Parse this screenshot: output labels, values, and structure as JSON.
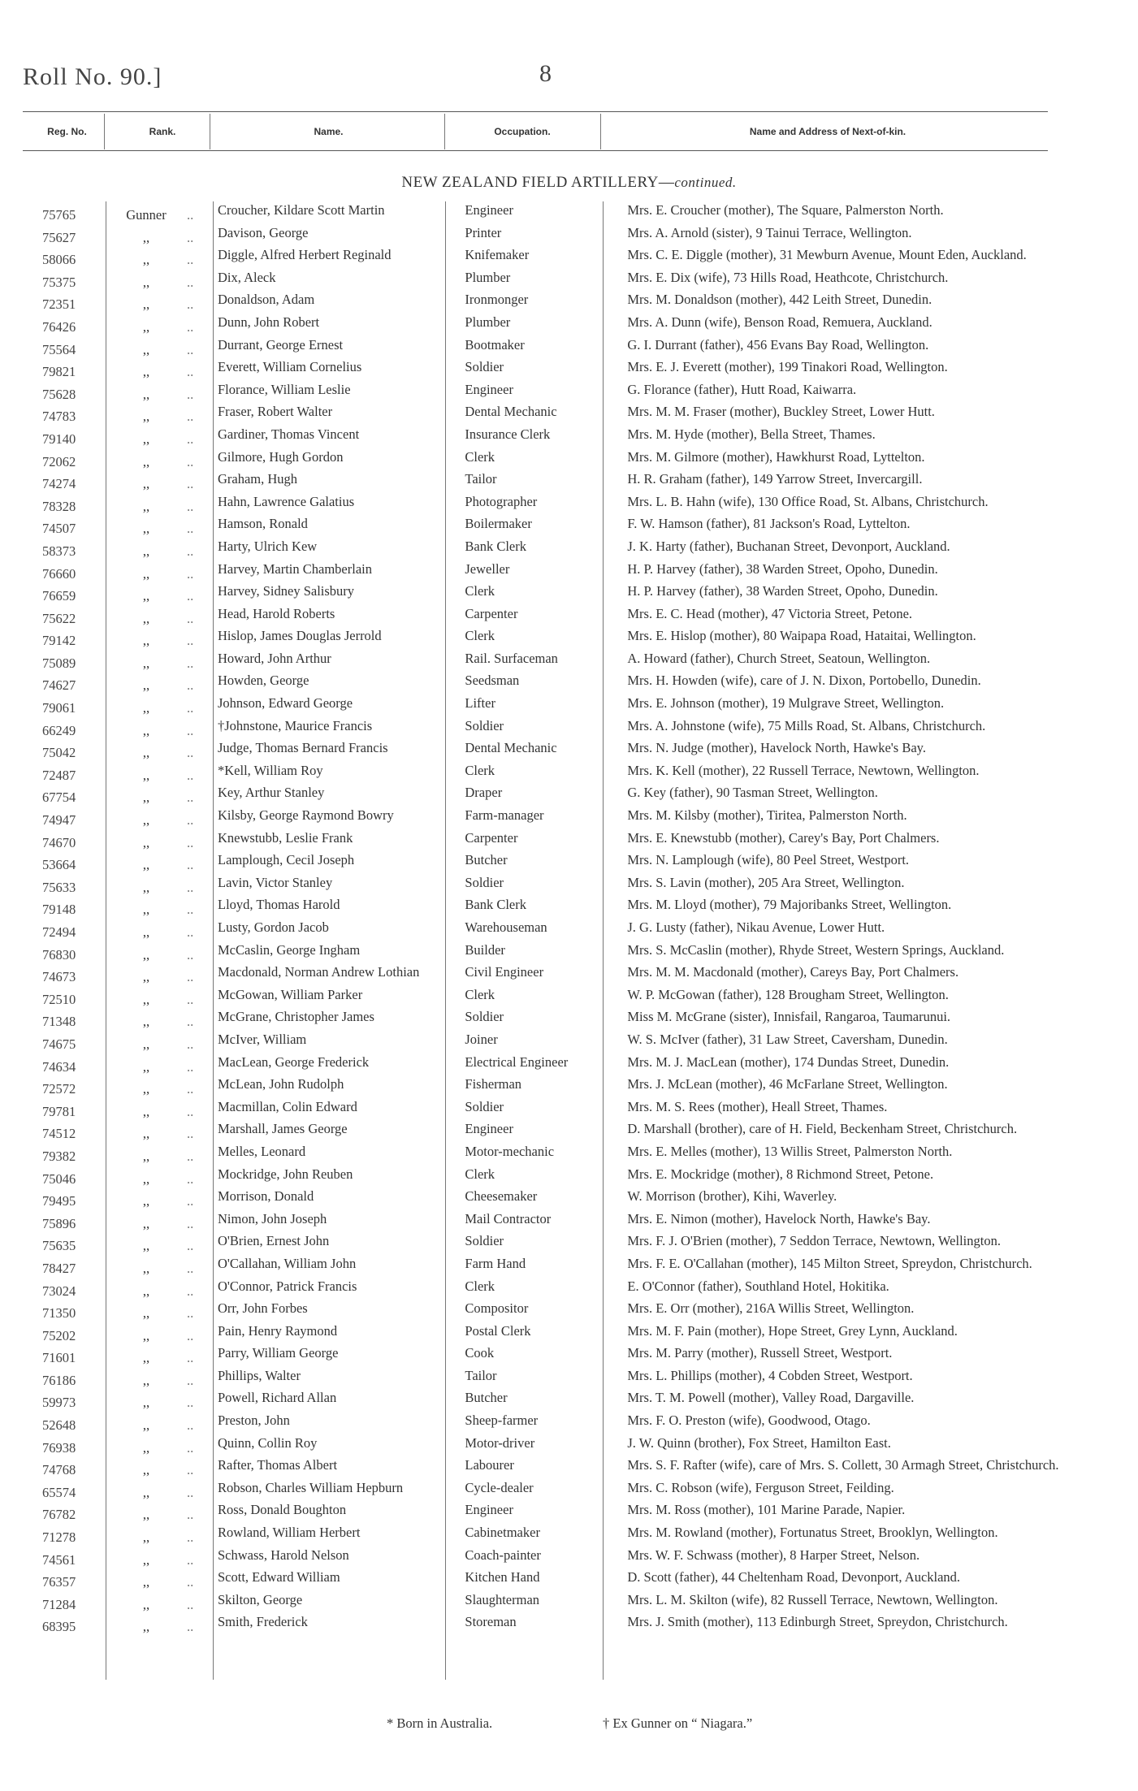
{
  "header": {
    "roll": "Roll No. 90.]",
    "page": "8"
  },
  "columns": {
    "reg": "Reg. No.",
    "rank": "Rank.",
    "name": "Name.",
    "occupation": "Occupation.",
    "next_of_kin": "Name and Address of Next-of-kin."
  },
  "section": {
    "title": "NEW ZEALAND FIELD ARTILLERY—",
    "continued": "continued."
  },
  "rows": [
    [
      "75765",
      "Gunner",
      "Croucher, Kildare Scott Martin",
      "Engineer",
      "Mrs. E. Croucher (mother), The Square, Palmerston North."
    ],
    [
      "75627",
      ",,",
      "Davison, George",
      "Printer",
      "Mrs. A. Arnold (sister), 9 Tainui Terrace, Wellington."
    ],
    [
      "58066",
      ",,",
      "Diggle, Alfred Herbert Reginald",
      "Knifemaker",
      "Mrs. C. E. Diggle (mother), 31 Mewburn Avenue, Mount Eden, Auckland."
    ],
    [
      "75375",
      ",,",
      "Dix, Aleck",
      "Plumber",
      "Mrs. E. Dix (wife), 73 Hills Road, Heathcote, Christchurch."
    ],
    [
      "72351",
      ",,",
      "Donaldson, Adam",
      "Ironmonger",
      "Mrs. M. Donaldson (mother), 442 Leith Street, Dunedin."
    ],
    [
      "76426",
      ",,",
      "Dunn, John Robert",
      "Plumber",
      "Mrs. A. Dunn (wife), Benson Road, Remuera, Auckland."
    ],
    [
      "75564",
      ",,",
      "Durrant, George Ernest",
      "Bootmaker",
      "G. I. Durrant (father), 456 Evans Bay Road, Wellington."
    ],
    [
      "79821",
      ",,",
      "Everett, William Cornelius",
      "Soldier",
      "Mrs. E. J. Everett (mother), 199 Tinakori Road, Wellington."
    ],
    [
      "75628",
      ",,",
      "Florance, William Leslie",
      "Engineer",
      "G. Florance (father), Hutt Road, Kaiwarra."
    ],
    [
      "74783",
      ",,",
      "Fraser, Robert Walter",
      "Dental Mechanic",
      "Mrs. M. M. Fraser (mother), Buckley Street, Lower Hutt."
    ],
    [
      "79140",
      ",,",
      "Gardiner, Thomas Vincent",
      "Insurance Clerk",
      "Mrs. M. Hyde (mother), Bella Street, Thames."
    ],
    [
      "72062",
      ",,",
      "Gilmore, Hugh Gordon",
      "Clerk",
      "Mrs. M. Gilmore (mother), Hawkhurst Road, Lyttelton."
    ],
    [
      "74274",
      ",,",
      "Graham, Hugh",
      "Tailor",
      "H. R. Graham (father), 149 Yarrow Street, Invercargill."
    ],
    [
      "78328",
      ",,",
      "Hahn, Lawrence Galatius",
      "Photographer",
      "Mrs. L. B. Hahn (wife), 130 Office Road, St. Albans, Christchurch."
    ],
    [
      "74507",
      ",,",
      "Hamson, Ronald",
      "Boilermaker",
      "F. W. Hamson (father), 81 Jackson's Road, Lyttelton."
    ],
    [
      "58373",
      ",,",
      "Harty, Ulrich Kew",
      "Bank Clerk",
      "J. K. Harty (father), Buchanan Street, Devonport, Auckland."
    ],
    [
      "76660",
      ",,",
      "Harvey, Martin Chamberlain",
      "Jeweller",
      "H. P. Harvey (father), 38 Warden Street, Opoho, Dunedin."
    ],
    [
      "76659",
      ",,",
      "Harvey, Sidney Salisbury",
      "Clerk",
      "H. P. Harvey (father), 38 Warden Street, Opoho, Dunedin."
    ],
    [
      "75622",
      ",,",
      "Head, Harold Roberts",
      "Carpenter",
      "Mrs. E. C. Head (mother), 47 Victoria Street, Petone."
    ],
    [
      "79142",
      ",,",
      "Hislop, James Douglas Jerrold",
      "Clerk",
      "Mrs. E. Hislop (mother), 80 Waipapa Road, Hataitai, Wellington."
    ],
    [
      "75089",
      ",,",
      "Howard, John Arthur",
      "Rail. Surfaceman",
      "A. Howard (father), Church Street, Seatoun, Wellington."
    ],
    [
      "74627",
      ",,",
      "Howden, George",
      "Seedsman",
      "Mrs. H. Howden (wife), care of J. N. Dixon, Portobello, Dunedin."
    ],
    [
      "79061",
      ",,",
      "Johnson, Edward George",
      "Lifter",
      "Mrs. E. Johnson (mother), 19 Mulgrave Street, Wellington."
    ],
    [
      "66249",
      ",,",
      "†Johnstone, Maurice Francis",
      "Soldier",
      "Mrs. A. Johnstone (wife), 75 Mills Road, St. Albans, Christchurch."
    ],
    [
      "75042",
      ",,",
      "Judge, Thomas Bernard Francis",
      "Dental Mechanic",
      "Mrs. N. Judge (mother), Havelock North, Hawke's Bay."
    ],
    [
      "72487",
      ",,",
      "*Kell, William Roy",
      "Clerk",
      "Mrs. K. Kell (mother), 22 Russell Terrace, Newtown, Wellington."
    ],
    [
      "67754",
      ",,",
      "Key, Arthur Stanley",
      "Draper",
      "G. Key (father), 90 Tasman Street, Wellington."
    ],
    [
      "74947",
      ",,",
      "Kilsby, George Raymond Bowry",
      "Farm-manager",
      "Mrs. M. Kilsby (mother), Tiritea, Palmerston North."
    ],
    [
      "74670",
      ",,",
      "Knewstubb, Leslie Frank",
      "Carpenter",
      "Mrs. E. Knewstubb (mother), Carey's Bay, Port Chalmers."
    ],
    [
      "53664",
      ",,",
      "Lamplough, Cecil Joseph",
      "Butcher",
      "Mrs. N. Lamplough (wife), 80 Peel Street, Westport."
    ],
    [
      "75633",
      ",,",
      "Lavin, Victor Stanley",
      "Soldier",
      "Mrs. S. Lavin (mother), 205 Ara Street, Wellington."
    ],
    [
      "79148",
      ",,",
      "Lloyd, Thomas Harold",
      "Bank Clerk",
      "Mrs. M. Lloyd (mother), 79 Majoribanks Street, Wellington."
    ],
    [
      "72494",
      ",,",
      "Lusty, Gordon Jacob",
      "Warehouseman",
      "J. G. Lusty (father), Nikau Avenue, Lower Hutt."
    ],
    [
      "76830",
      ",,",
      "McCaslin, George Ingham",
      "Builder",
      "Mrs. S. McCaslin (mother), Rhyde Street, Western Springs, Auckland."
    ],
    [
      "74673",
      ",,",
      "Macdonald, Norman Andrew Lothian",
      "Civil Engineer",
      "Mrs. M. M. Macdonald (mother), Careys Bay, Port Chalmers."
    ],
    [
      "72510",
      ",,",
      "McGowan, William Parker",
      "Clerk",
      "W. P. McGowan (father), 128 Brougham Street, Wellington."
    ],
    [
      "71348",
      ",,",
      "McGrane, Christopher James",
      "Soldier",
      "Miss M. McGrane (sister), Innisfail, Rangaroa, Taumarunui."
    ],
    [
      "74675",
      ",,",
      "McIver, William",
      "Joiner",
      "W. S. McIver (father), 31 Law Street, Caversham, Dunedin."
    ],
    [
      "74634",
      ",,",
      "MacLean, George Frederick",
      "Electrical Engineer",
      "Mrs. M. J. MacLean (mother), 174 Dundas Street, Dunedin."
    ],
    [
      "72572",
      ",,",
      "McLean, John Rudolph",
      "Fisherman",
      "Mrs. J. McLean (mother), 46 McFarlane Street, Wellington."
    ],
    [
      "79781",
      ",,",
      "Macmillan, Colin Edward",
      "Soldier",
      "Mrs. M. S. Rees (mother), Heall Street, Thames."
    ],
    [
      "74512",
      ",,",
      "Marshall, James George",
      "Engineer",
      "D. Marshall (brother), care of H. Field, Beckenham Street, Christchurch."
    ],
    [
      "79382",
      ",,",
      "Melles, Leonard",
      "Motor-mechanic",
      "Mrs. E. Melles (mother), 13 Willis Street, Palmerston North."
    ],
    [
      "75046",
      ",,",
      "Mockridge, John Reuben",
      "Clerk",
      "Mrs. E. Mockridge (mother), 8 Richmond Street, Petone."
    ],
    [
      "79495",
      ",,",
      "Morrison, Donald",
      "Cheesemaker",
      "W. Morrison (brother), Kihi, Waverley."
    ],
    [
      "75896",
      ",,",
      "Nimon, John Joseph",
      "Mail Contractor",
      "Mrs. E. Nimon (mother), Havelock North, Hawke's Bay."
    ],
    [
      "75635",
      ",,",
      "O'Brien, Ernest John",
      "Soldier",
      "Mrs. F. J. O'Brien (mother), 7 Seddon Terrace, Newtown, Wellington."
    ],
    [
      "78427",
      ",,",
      "O'Callahan, William John",
      "Farm Hand",
      "Mrs. F. E. O'Callahan (mother), 145 Milton Street, Spreydon, Christchurch."
    ],
    [
      "73024",
      ",,",
      "O'Connor, Patrick Francis",
      "Clerk",
      "E. O'Connor (father), Southland Hotel, Hokitika."
    ],
    [
      "71350",
      ",,",
      "Orr, John Forbes",
      "Compositor",
      "Mrs. E. Orr (mother), 216A Willis Street, Wellington."
    ],
    [
      "75202",
      ",,",
      "Pain, Henry Raymond",
      "Postal Clerk",
      "Mrs. M. F. Pain (mother), Hope Street, Grey Lynn, Auckland."
    ],
    [
      "71601",
      ",,",
      "Parry, William George",
      "Cook",
      "Mrs. M. Parry (mother), Russell Street, Westport."
    ],
    [
      "76186",
      ",,",
      "Phillips, Walter",
      "Tailor",
      "Mrs. L. Phillips (mother), 4 Cobden Street, Westport."
    ],
    [
      "59973",
      ",,",
      "Powell, Richard Allan",
      "Butcher",
      "Mrs. T. M. Powell (mother), Valley Road, Dargaville."
    ],
    [
      "52648",
      ",,",
      "Preston, John",
      "Sheep-farmer",
      "Mrs. F. O. Preston (wife), Goodwood, Otago."
    ],
    [
      "76938",
      ",,",
      "Quinn, Collin Roy",
      "Motor-driver",
      "J. W. Quinn (brother), Fox Street, Hamilton East."
    ],
    [
      "74768",
      ",,",
      "Rafter, Thomas Albert",
      "Labourer",
      "Mrs. S. F. Rafter (wife), care of Mrs. S. Collett, 30 Armagh Street, Christchurch."
    ],
    [
      "65574",
      ",,",
      "Robson, Charles William Hepburn",
      "Cycle-dealer",
      "Mrs. C. Robson (wife), Ferguson Street, Feilding."
    ],
    [
      "76782",
      ",,",
      "Ross, Donald Boughton",
      "Engineer",
      "Mrs. M. Ross (mother), 101 Marine Parade, Napier."
    ],
    [
      "71278",
      ",,",
      "Rowland, William Herbert",
      "Cabinetmaker",
      "Mrs. M. Rowland (mother), Fortunatus Street, Brooklyn, Wellington."
    ],
    [
      "74561",
      ",,",
      "Schwass, Harold Nelson",
      "Coach-painter",
      "Mrs. W. F. Schwass (mother), 8 Harper Street, Nelson."
    ],
    [
      "76357",
      ",,",
      "Scott, Edward William",
      "Kitchen Hand",
      "D. Scott (father), 44 Cheltenham Road, Devonport, Auckland."
    ],
    [
      "71284",
      ",,",
      "Skilton, George",
      "Slaughterman",
      "Mrs. L. M. Skilton (wife), 82 Russell Terrace, Newtown, Wellington."
    ],
    [
      "68395",
      ",,",
      "Smith, Frederick",
      "Storeman",
      "Mrs. J. Smith (mother), 113 Edinburgh Street, Spreydon, Christchurch."
    ]
  ],
  "footnotes": {
    "star": "* Born in Australia.",
    "dagger": "† Ex Gunner on “ Niagara.”"
  }
}
